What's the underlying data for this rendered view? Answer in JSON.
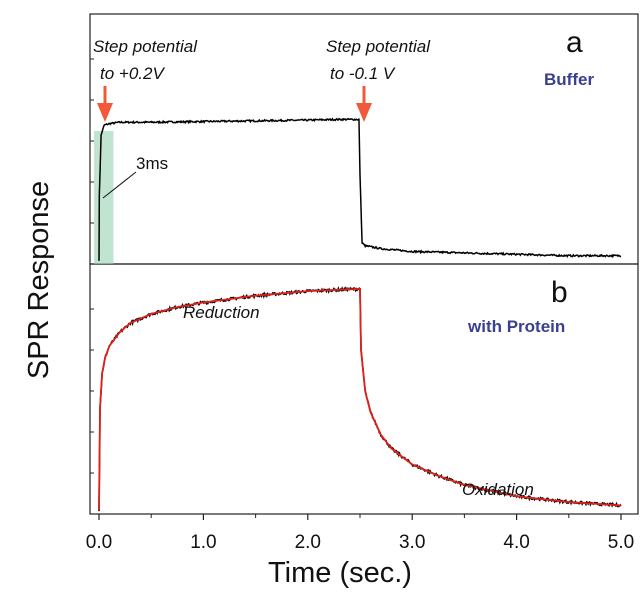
{
  "chart_data": {
    "type": "line",
    "xlabel": "Time (sec.)",
    "ylabel": "SPR Response",
    "xlim": [
      0,
      5
    ],
    "x_ticks": [
      "0.0",
      "1.0",
      "2.0",
      "3.0",
      "4.0",
      "5.0"
    ],
    "panels": [
      {
        "letter": "a",
        "condition": "Buffer",
        "annotations": {
          "step1_line1": "Step potential",
          "step1_line2": "to +0.2V",
          "step2_line1": "Step potential",
          "step2_line2": "to -0.1 V",
          "timing": "3ms"
        },
        "step_times": [
          0.0,
          2.5
        ],
        "highlight_x": [
          0.0,
          0.1
        ],
        "series": [
          {
            "color": "#000000",
            "x": [
              0.0,
              0.003,
              0.02,
              0.05,
              0.1,
              0.2,
              0.5,
              1.0,
              1.5,
              2.0,
              2.3,
              2.49,
              2.5,
              2.52,
              2.55,
              2.7,
              3.0,
              3.5,
              4.0,
              4.5,
              5.0
            ],
            "y": [
              0.0,
              0.45,
              0.88,
              0.95,
              0.96,
              0.97,
              0.97,
              0.975,
              0.98,
              0.985,
              0.99,
              0.99,
              0.6,
              0.12,
              0.1,
              0.08,
              0.06,
              0.05,
              0.04,
              0.03,
              0.03
            ]
          }
        ]
      },
      {
        "letter": "b",
        "condition": "with Protein",
        "annotations": {
          "reduction": "Reduction",
          "oxidation": "Oxidation"
        },
        "series": [
          {
            "color": "#000000",
            "x": [
              0.0,
              0.01,
              0.03,
              0.06,
              0.1,
              0.2,
              0.3,
              0.5,
              0.75,
              1.0,
              1.5,
              2.0,
              2.5,
              2.51,
              2.55,
              2.6,
              2.7,
              2.8,
              3.0,
              3.25,
              3.5,
              4.0,
              4.5,
              5.0
            ],
            "y": [
              0.0,
              0.45,
              0.6,
              0.67,
              0.72,
              0.78,
              0.82,
              0.86,
              0.89,
              0.91,
              0.94,
              0.96,
              0.97,
              0.7,
              0.52,
              0.43,
              0.33,
              0.27,
              0.2,
              0.15,
              0.11,
              0.06,
              0.035,
              0.02
            ]
          },
          {
            "color": "#e0201b",
            "x": [
              0.0,
              0.01,
              0.03,
              0.06,
              0.1,
              0.2,
              0.3,
              0.5,
              0.75,
              1.0,
              1.5,
              2.0,
              2.5,
              2.51,
              2.55,
              2.6,
              2.7,
              2.8,
              3.0,
              3.25,
              3.5,
              4.0,
              4.5,
              5.0
            ],
            "y": [
              0.0,
              0.45,
              0.6,
              0.67,
              0.72,
              0.78,
              0.82,
              0.86,
              0.89,
              0.91,
              0.94,
              0.96,
              0.97,
              0.7,
              0.52,
              0.43,
              0.33,
              0.27,
              0.2,
              0.15,
              0.11,
              0.06,
              0.035,
              0.02
            ]
          }
        ]
      }
    ],
    "colors": {
      "arrow": "#f05a3a",
      "highlight": "#9fd6b8",
      "condition_text": "#3a3f8f"
    }
  }
}
